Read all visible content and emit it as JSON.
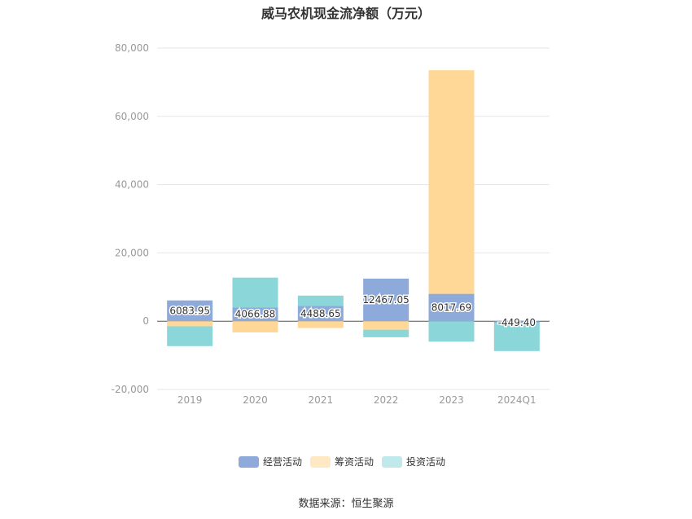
{
  "title": "威马农机现金流净额（万元）",
  "source": "数据来源：恒生聚源",
  "chart_data": {
    "type": "bar",
    "stacked": true,
    "categories": [
      "2019",
      "2020",
      "2021",
      "2022",
      "2023",
      "2024Q1"
    ],
    "ylim": [
      -20000,
      80000
    ],
    "yticks": [
      -20000,
      0,
      20000,
      40000,
      60000,
      80000
    ],
    "ytick_labels": [
      "-20,000",
      "0",
      "20,000",
      "40,000",
      "60,000",
      "80,000"
    ],
    "grid": true,
    "legend_position": "bottom",
    "series": [
      {
        "name": "经营活动",
        "color": "#8eaadb",
        "values": [
          6083.95,
          4066.88,
          4488.65,
          12467.05,
          8017.69,
          -449.4
        ],
        "labels": [
          "6083.95",
          "4066.88",
          "4488.65",
          "12467.05",
          "8017.69",
          "-449.40"
        ]
      },
      {
        "name": "筹资活动",
        "color": "#ffd898",
        "values": [
          -1500,
          -3300,
          -2000,
          -2500,
          65500,
          0
        ]
      },
      {
        "name": "投资活动",
        "color": "#8ad6d9",
        "values": [
          -5800,
          8700,
          3000,
          -2200,
          -6000,
          -8300
        ]
      }
    ]
  }
}
